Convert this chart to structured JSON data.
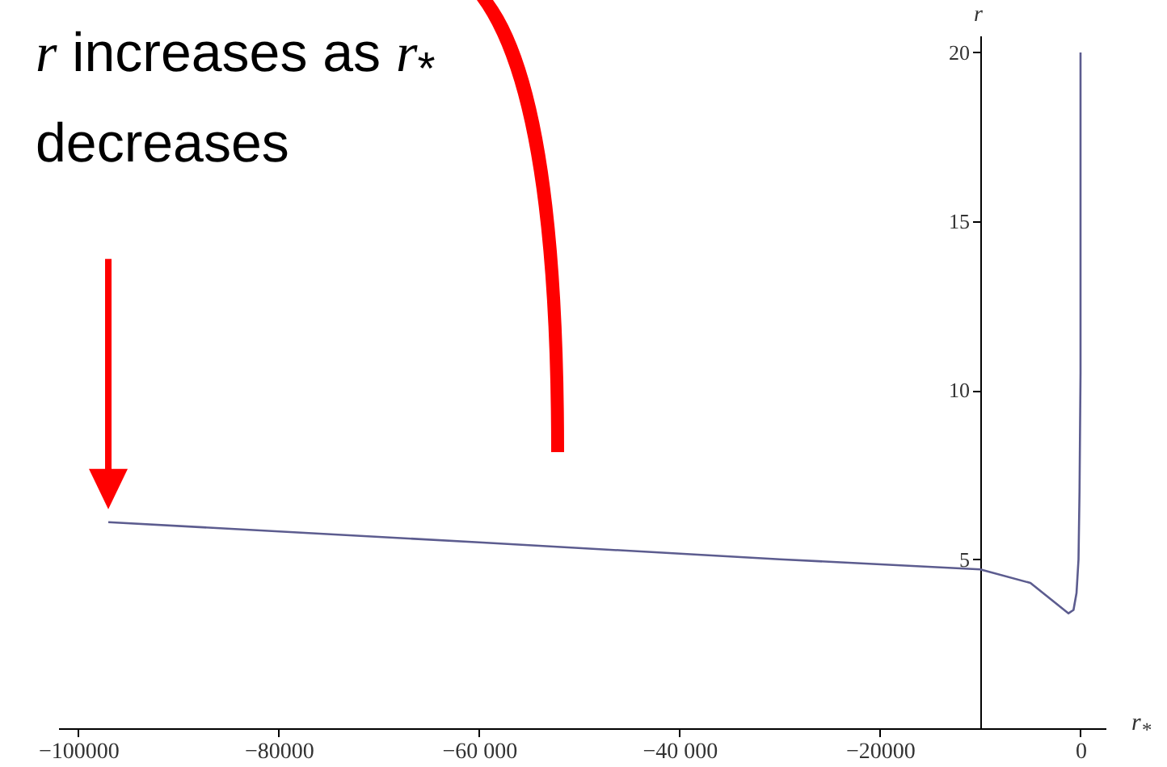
{
  "chart_data": {
    "type": "line",
    "xlabel": "r$_{*}$",
    "ylabel": "r",
    "x": [
      -97000,
      -60000,
      -30000,
      -10000,
      -5000,
      -1200,
      -700,
      -400,
      -200,
      -100,
      0,
      0
    ],
    "series": [
      {
        "color": "#5c5c8f",
        "values": [
          6.1,
          5.5,
          5.0,
          4.7,
          4.3,
          3.4,
          3.5,
          4.0,
          5.0,
          7.0,
          10.5,
          20
        ]
      }
    ],
    "xlim": [
      -102000,
      2500
    ],
    "ylim": [
      0,
      20.5
    ],
    "xticks": [
      {
        "value": -100000,
        "label": "−100000"
      },
      {
        "value": -80000,
        "label": "−80000"
      },
      {
        "value": -60000,
        "label": "−60 000"
      },
      {
        "value": -40000,
        "label": "−40 000"
      },
      {
        "value": -20000,
        "label": "−20000"
      },
      0
    ],
    "yticks": [
      5,
      10,
      15,
      20
    ],
    "annotations": [
      "r increases as r$_{*}$ decreases"
    ],
    "grid": false,
    "marker": "none",
    "line_style": "solid"
  }
}
